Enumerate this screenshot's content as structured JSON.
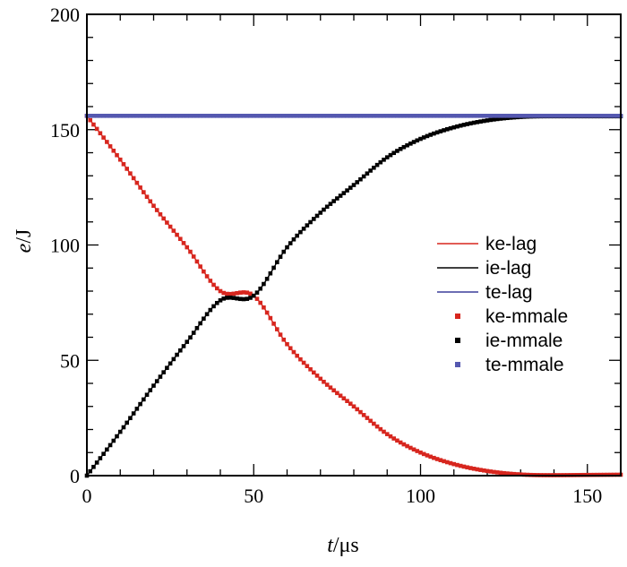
{
  "chart_data": {
    "type": "line",
    "xlabel_italic": "t",
    "xlabel_rest": "/μs",
    "ylabel_italic": "e",
    "ylabel_rest": "/J",
    "xlim": [
      0,
      160
    ],
    "ylim": [
      0,
      200
    ],
    "x_major_ticks": [
      0,
      50,
      100,
      150
    ],
    "x_minor_step": 10,
    "y_major_ticks": [
      0,
      50,
      100,
      150,
      200
    ],
    "y_minor_step": 10,
    "x_tick_labels": [
      "0",
      "50",
      "100",
      "150"
    ],
    "y_tick_labels": [
      "0",
      "50",
      "100",
      "150",
      "200"
    ],
    "grid": false,
    "legend_position": "center-right",
    "x": [
      0,
      10,
      20,
      30,
      40,
      50,
      60,
      70,
      80,
      90,
      100,
      110,
      120,
      130,
      140,
      150,
      160
    ],
    "series": [
      {
        "name": "ke-lag",
        "style": "line",
        "color": "#d7261e",
        "values": [
          156,
          137,
          117,
          99,
          80,
          78,
          57,
          42,
          30,
          18,
          10,
          5,
          2,
          0.5,
          0.2,
          0.3,
          0.4
        ]
      },
      {
        "name": "ie-lag",
        "style": "line",
        "color": "#000000",
        "values": [
          0,
          19,
          39,
          58,
          76,
          78,
          99,
          114,
          126,
          138,
          146,
          151,
          154,
          155.5,
          155.8,
          155.8,
          155.8
        ]
      },
      {
        "name": "te-lag",
        "style": "line",
        "color": "#3b3f9a",
        "values": [
          156,
          156,
          156,
          156,
          156,
          156,
          156,
          156,
          156,
          156,
          156,
          156,
          156,
          156,
          156,
          156,
          156
        ]
      },
      {
        "name": "ke-mmale",
        "style": "markers",
        "color": "#d7261e",
        "ref": 0
      },
      {
        "name": "ie-mmale",
        "style": "markers",
        "color": "#000000",
        "ref": 1
      },
      {
        "name": "te-mmale",
        "style": "markers",
        "color": "#5558b0",
        "ref": 2
      }
    ]
  }
}
